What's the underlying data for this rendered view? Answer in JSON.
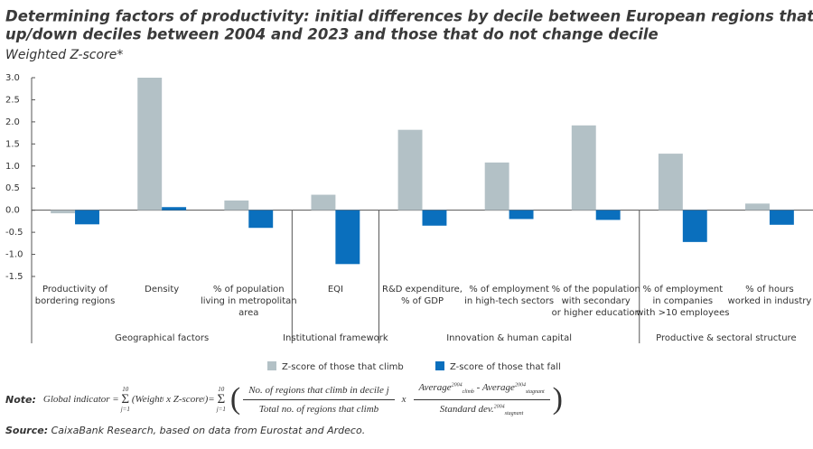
{
  "chart_data": {
    "type": "bar",
    "title": [
      "Determining factors of productivity: initial differences by decile between European regions that move",
      "up/down deciles between 2004 and 2023 and those that do not change decile"
    ],
    "subtitle": "Weighted Z-score*",
    "groups": [
      {
        "name": "Geographical factors",
        "categories": [
          [
            "Productivity of",
            "bordering regions"
          ],
          [
            "Density"
          ],
          [
            "% of population",
            "living in metropolitan",
            "area"
          ]
        ]
      },
      {
        "name": "Institutional framework",
        "categories": [
          [
            "EQI"
          ]
        ]
      },
      {
        "name": "Innovation & human capital",
        "categories": [
          [
            "R&D expenditure,",
            "% of GDP"
          ],
          [
            "% of employment",
            "in high-tech sectors"
          ],
          [
            "% of the population",
            "with secondary",
            "or higher education"
          ]
        ]
      },
      {
        "name": "Productive & sectoral structure",
        "categories": [
          [
            "% of employment",
            "in companies",
            "with >10 employees"
          ],
          [
            "% of hours",
            "worked in industry"
          ]
        ]
      }
    ],
    "series": [
      {
        "name": "Z-score of those that climb",
        "color": "#b3c1c6",
        "values": [
          -0.07,
          3.0,
          0.22,
          0.35,
          1.82,
          1.08,
          1.92,
          1.28,
          0.15
        ]
      },
      {
        "name": "Z-score of those that fall",
        "color": "#0a6fbd",
        "values": [
          -0.32,
          0.07,
          -0.4,
          -1.22,
          -0.35,
          -0.2,
          -0.22,
          -0.72,
          -0.33
        ]
      }
    ],
    "ylim": [
      -1.5,
      3.0
    ],
    "yticks": [
      {
        "value": 3.0,
        "label": "3.0"
      },
      {
        "value": 2.5,
        "label": "2.5"
      },
      {
        "value": 2.0,
        "label": "2.0"
      },
      {
        "value": 1.5,
        "label": "1.5"
      },
      {
        "value": 1.0,
        "label": "1.0"
      },
      {
        "value": 0.5,
        "label": "0.5"
      },
      {
        "value": 0,
        "label": "0.0"
      },
      {
        "value": -0.5,
        "label": "-0.5"
      },
      {
        "value": -1.0,
        "label": "-1.0"
      },
      {
        "value": -1.5,
        "label": "-1.5"
      }
    ]
  },
  "note": {
    "label": "Note:",
    "lhs": "Global indicator =",
    "sum_top": "10",
    "sum_bottom": "j=1",
    "weight": "(Weight",
    "index": "j",
    "times": "x",
    "zscore": "Z-score",
    "close": ")=",
    "fraction1": {
      "numerator": "No. of regions that climb in decile j",
      "denominator": "Total no. of regions that climb"
    },
    "fraction2": {
      "average": "Average",
      "year": "2004",
      "climb": "climb",
      "stagnant": "stagnant",
      "minus": "- Average",
      "std": "Standard dev."
    }
  },
  "source": {
    "label": "Source:",
    "text": "CaixaBank Research, based on data from Eurostat and Ardeco."
  }
}
